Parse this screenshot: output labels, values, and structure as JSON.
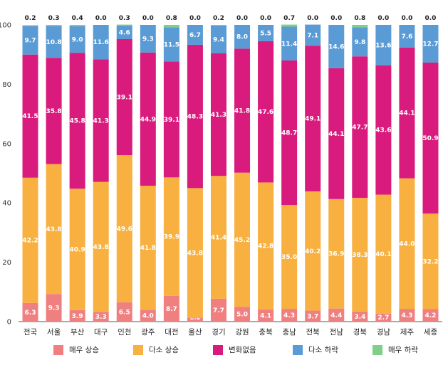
{
  "chart_data": {
    "type": "bar",
    "stacked": true,
    "ylim": [
      0,
      100
    ],
    "yticks": [
      0,
      20,
      40,
      60,
      80,
      100
    ],
    "categories": [
      "전국",
      "서울",
      "부산",
      "대구",
      "인천",
      "광주",
      "대전",
      "울산",
      "경기",
      "강원",
      "충북",
      "충남",
      "전북",
      "전남",
      "경북",
      "경남",
      "제주",
      "세종"
    ],
    "series": [
      {
        "name": "매우 상승",
        "color": "#f08080",
        "label_color": "#ffffff",
        "values": [
          6.3,
          9.3,
          3.9,
          3.3,
          6.5,
          4.0,
          8.7,
          1.2,
          7.7,
          5.0,
          4.1,
          4.3,
          3.7,
          4.4,
          3.4,
          2.7,
          4.3,
          4.2
        ]
      },
      {
        "name": "다소 상승",
        "color": "#f8b040",
        "label_color": "#ffffff",
        "values": [
          42.2,
          43.8,
          40.9,
          43.8,
          49.6,
          41.8,
          39.9,
          43.8,
          41.4,
          45.2,
          42.8,
          35.0,
          40.2,
          36.9,
          38.3,
          40.1,
          44.0,
          32.2
        ]
      },
      {
        "name": "변화없음",
        "color": "#d81b7c",
        "label_color": "#ffffff",
        "values": [
          41.5,
          35.8,
          45.8,
          41.3,
          39.1,
          44.9,
          39.1,
          48.3,
          41.3,
          41.8,
          47.6,
          48.7,
          49.1,
          44.1,
          47.7,
          43.6,
          44.1,
          50.9
        ]
      },
      {
        "name": "다소 하락",
        "color": "#5a9bd5",
        "label_color": "#ffffff",
        "values": [
          9.7,
          10.8,
          9.0,
          11.6,
          4.6,
          9.3,
          11.5,
          6.7,
          9.4,
          8.0,
          5.5,
          11.4,
          7.1,
          14.6,
          9.8,
          13.6,
          7.6,
          12.7
        ]
      },
      {
        "name": "매우 하락",
        "color": "#7fcf8b",
        "label_color": "#222222",
        "values": [
          0.2,
          0.3,
          0.4,
          0.0,
          0.3,
          0.0,
          0.8,
          0.0,
          0.2,
          0.0,
          0.0,
          0.7,
          0.0,
          0.0,
          0.8,
          0.0,
          0.0,
          0.0
        ]
      }
    ],
    "legend_position": "bottom",
    "grid": false
  }
}
